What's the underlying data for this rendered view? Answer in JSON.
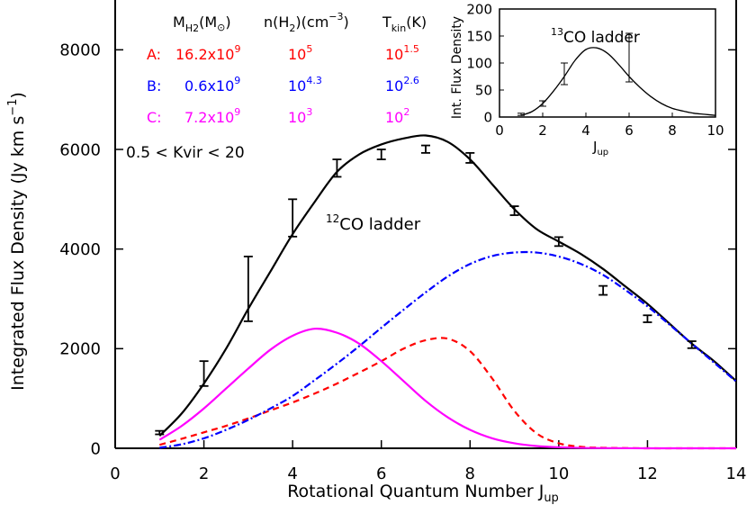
{
  "chart_data": [
    {
      "type": "line",
      "title": "",
      "xlabel": "Rotational Quantum Number J",
      "xlabel_sub": "up",
      "ylabel": "Integrated Flux Density (Jy km s",
      "ylabel_sup": "−1",
      "ylabel_close": ")",
      "xlim": [
        0,
        14
      ],
      "ylim": [
        0,
        9000
      ],
      "xticks": [
        0,
        2,
        4,
        6,
        8,
        10,
        12,
        14
      ],
      "yticks": [
        0,
        2000,
        4000,
        6000,
        8000
      ],
      "annotation": "0.5 < Kvir < 20",
      "ladder_label": {
        "sup": "12",
        "text": "CO ladder"
      },
      "legend_table": {
        "header": {
          "mass": "M",
          "mass_sub": "H2",
          "mass_unit_open": "(M",
          "mass_unit_sym": "⊙",
          "mass_unit_close": ")",
          "density": "n(H",
          "density_sub": "2",
          "density_close": ")(cm",
          "density_sup": "−3",
          "density_end": ")",
          "temp": "T",
          "temp_sub": "kin",
          "temp_unit": "(K)"
        },
        "rows": [
          {
            "label": "A:",
            "mass": "16.2x10",
            "mass_exp": "9",
            "density": "10",
            "density_exp": "5",
            "temp": "10",
            "temp_exp": "1.5",
            "color": "#ff0000"
          },
          {
            "label": "B:",
            "mass": "0.6x10",
            "mass_exp": "9",
            "density": "10",
            "density_exp": "4.3",
            "temp": "10",
            "temp_exp": "2.6",
            "color": "#0000ff"
          },
          {
            "label": "C:",
            "mass": "7.2x10",
            "mass_exp": "9",
            "density": "10",
            "density_exp": "3",
            "temp": "10",
            "temp_exp": "2",
            "color": "#ff00ff"
          }
        ]
      },
      "observed": [
        {
          "x": 1,
          "y": 320,
          "lo": 280,
          "hi": 350
        },
        {
          "x": 2,
          "y": 1250,
          "lo": 1250,
          "hi": 1750
        },
        {
          "x": 3,
          "y": 2550,
          "lo": 2550,
          "hi": 3850
        },
        {
          "x": 4,
          "y": 4250,
          "lo": 4250,
          "hi": 5000
        },
        {
          "x": 5,
          "y": 5600,
          "lo": 5450,
          "hi": 5800
        },
        {
          "x": 6,
          "y": 5900,
          "lo": 5800,
          "hi": 6000
        },
        {
          "x": 7,
          "y": 6000,
          "lo": 5930,
          "hi": 6080
        },
        {
          "x": 8,
          "y": 5830,
          "lo": 5730,
          "hi": 5930
        },
        {
          "x": 9,
          "y": 4770,
          "lo": 4680,
          "hi": 4860
        },
        {
          "x": 10,
          "y": 4150,
          "lo": 4060,
          "hi": 4240
        },
        {
          "x": 11,
          "y": 3170,
          "lo": 3080,
          "hi": 3260
        },
        {
          "x": 12,
          "y": 2600,
          "lo": 2530,
          "hi": 2670
        },
        {
          "x": 13,
          "y": 2080,
          "lo": 2010,
          "hi": 2150
        }
      ],
      "series": [
        {
          "color": "#000000",
          "dash": "",
          "x": [
            1,
            1.5,
            2,
            2.5,
            3,
            3.5,
            4,
            4.5,
            5,
            5.5,
            6,
            6.5,
            7,
            7.5,
            8,
            8.5,
            9,
            9.5,
            10,
            10.5,
            11,
            11.5,
            12,
            12.5,
            13,
            13.5,
            14
          ],
          "y": [
            250,
            700,
            1300,
            2000,
            2800,
            3550,
            4300,
            4950,
            5550,
            5900,
            6100,
            6220,
            6280,
            6150,
            5800,
            5300,
            4800,
            4400,
            4150,
            3900,
            3600,
            3250,
            2900,
            2500,
            2100,
            1750,
            1350
          ]
        },
        {
          "color": "#ff0000",
          "dash": "7,5",
          "x": [
            1,
            1.5,
            2,
            2.5,
            3,
            3.5,
            4,
            4.5,
            5,
            5.5,
            6,
            6.5,
            7,
            7.5,
            8,
            8.5,
            9,
            9.5,
            10,
            10.5,
            11,
            12,
            13,
            14
          ],
          "y": [
            70,
            190,
            320,
            450,
            600,
            760,
            920,
            1100,
            1300,
            1520,
            1750,
            2000,
            2170,
            2200,
            1950,
            1400,
            750,
            300,
            100,
            30,
            10,
            0,
            0,
            0
          ]
        },
        {
          "color": "#0000ff",
          "dash": "8,3,2,3",
          "x": [
            1,
            1.5,
            2,
            2.5,
            3,
            3.5,
            4,
            4.5,
            5,
            5.5,
            6,
            6.5,
            7,
            7.5,
            8,
            8.5,
            9,
            9.5,
            10,
            10.5,
            11,
            11.5,
            12,
            12.5,
            13,
            13.5,
            14
          ],
          "y": [
            10,
            80,
            200,
            370,
            570,
            800,
            1050,
            1370,
            1700,
            2050,
            2420,
            2780,
            3130,
            3450,
            3700,
            3860,
            3930,
            3930,
            3850,
            3700,
            3480,
            3180,
            2850,
            2480,
            2100,
            1720,
            1340
          ]
        },
        {
          "color": "#ff00ff",
          "dash": "",
          "x": [
            1,
            1.5,
            2,
            2.5,
            3,
            3.5,
            4,
            4.5,
            5,
            5.5,
            6,
            6.5,
            7,
            7.5,
            8,
            8.5,
            9,
            9.5,
            10,
            10.5,
            11,
            12,
            13,
            14
          ],
          "y": [
            170,
            450,
            800,
            1200,
            1600,
            1980,
            2260,
            2400,
            2320,
            2100,
            1750,
            1350,
            950,
            620,
            370,
            200,
            100,
            45,
            20,
            8,
            3,
            0,
            0,
            0
          ]
        }
      ]
    },
    {
      "type": "line",
      "title": "",
      "label": {
        "sup": "13",
        "text": "CO ladder"
      },
      "xlabel": "J",
      "xlabel_sub": "up",
      "ylabel": "Int. Flux Density",
      "xlim": [
        0,
        10
      ],
      "ylim": [
        0,
        200
      ],
      "xticks": [
        0,
        2,
        4,
        6,
        8,
        10
      ],
      "yticks": [
        0,
        50,
        100,
        150,
        200
      ],
      "observed": [
        {
          "x": 1,
          "y": 5,
          "lo": 3,
          "hi": 7
        },
        {
          "x": 2,
          "y": 25,
          "lo": 20,
          "hi": 30
        },
        {
          "x": 3,
          "y": 60,
          "lo": 60,
          "hi": 100
        },
        {
          "x": 6,
          "y": 65,
          "lo": 65,
          "hi": 155
        }
      ],
      "series": [
        {
          "color": "#000000",
          "dash": "",
          "x": [
            1,
            1.5,
            2,
            2.5,
            3,
            3.5,
            4,
            4.5,
            5,
            5.5,
            6,
            6.5,
            7,
            7.5,
            8,
            8.5,
            9,
            9.5,
            10
          ],
          "y": [
            3,
            10,
            25,
            48,
            75,
            105,
            125,
            128,
            118,
            98,
            75,
            55,
            38,
            25,
            16,
            11,
            7,
            5,
            3
          ]
        }
      ]
    }
  ]
}
